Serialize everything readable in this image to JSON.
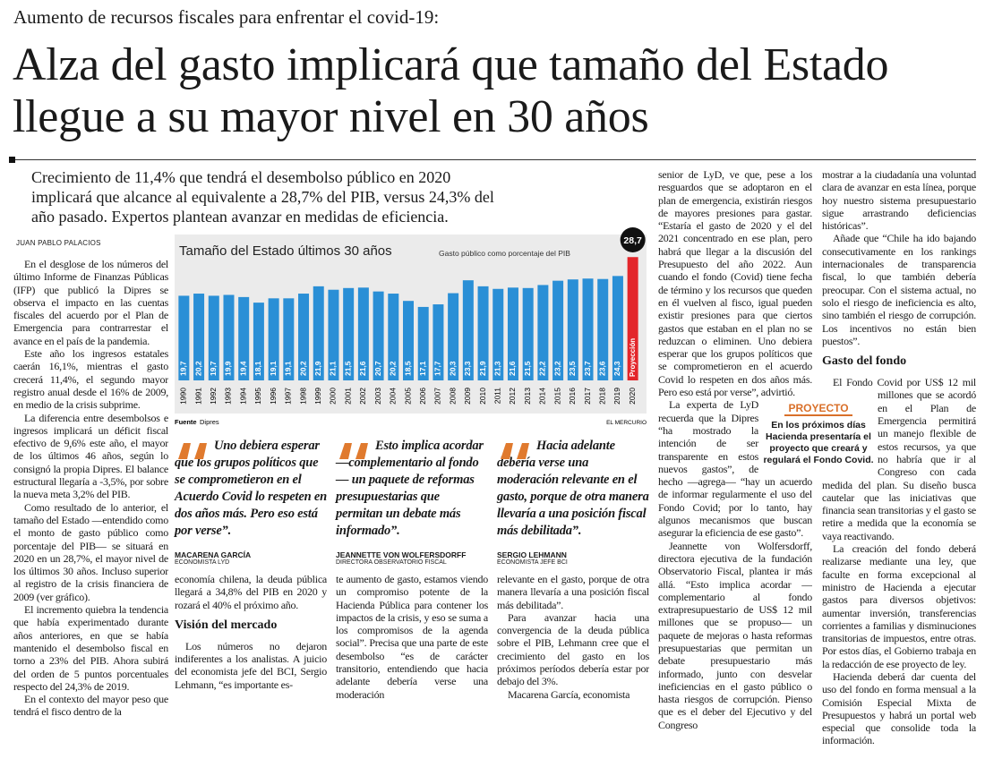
{
  "header": {
    "kicker": "Aumento de recursos fiscales para enfrentar el covid-19:",
    "title": "Alza del gasto implicará que tamaño del Estado llegue a su mayor nivel en 30 años"
  },
  "lead": "Crecimiento de 11,4% que tendrá el desembolso público en 2020 implicará que alcance al equivalente a 28,7% del PIB, versus 24,3% del año pasado. Expertos plantean avanzar en medidas de eficiencia.",
  "byline": "JUAN PABLO PALACIOS",
  "chart_data": {
    "type": "bar",
    "title": "Tamaño del Estado últimos 30 años",
    "subtitle": "Gasto público como porcentaje del PIB",
    "categories": [
      "1990",
      "1991",
      "1992",
      "1993",
      "1994",
      "1995",
      "1996",
      "1997",
      "1998",
      "1999",
      "2000",
      "2001",
      "2002",
      "2003",
      "2004",
      "2005",
      "2006",
      "2007",
      "2008",
      "2009",
      "2010",
      "2011",
      "2012",
      "2013",
      "2014",
      "2015",
      "2016",
      "2017",
      "2018",
      "2019",
      "2020"
    ],
    "values": [
      19.7,
      20.2,
      19.7,
      19.9,
      19.4,
      18.1,
      19.1,
      19.1,
      20.2,
      21.9,
      21.1,
      21.5,
      21.6,
      20.7,
      20.2,
      18.5,
      17.1,
      17.7,
      20.3,
      23.3,
      21.9,
      21.3,
      21.6,
      21.5,
      22.2,
      23.2,
      23.5,
      23.7,
      23.6,
      24.3,
      28.7
    ],
    "value_labels": [
      "19,7",
      "20,2",
      "19,7",
      "19,9",
      "19,4",
      "18,1",
      "19,1",
      "19,1",
      "20,2",
      "21,9",
      "21,1",
      "21,5",
      "21,6",
      "20,7",
      "20,2",
      "18,5",
      "17,1",
      "17,7",
      "20,3",
      "23,3",
      "21,9",
      "21,3",
      "21,6",
      "21,5",
      "22,2",
      "23,2",
      "23,5",
      "23,7",
      "23,6",
      "24,3",
      "28,7"
    ],
    "colors": [
      "#2a8fd6",
      "#2a8fd6",
      "#2a8fd6",
      "#2a8fd6",
      "#2a8fd6",
      "#2a8fd6",
      "#2a8fd6",
      "#2a8fd6",
      "#2a8fd6",
      "#2a8fd6",
      "#2a8fd6",
      "#2a8fd6",
      "#2a8fd6",
      "#2a8fd6",
      "#2a8fd6",
      "#2a8fd6",
      "#2a8fd6",
      "#2a8fd6",
      "#2a8fd6",
      "#2a8fd6",
      "#2a8fd6",
      "#2a8fd6",
      "#2a8fd6",
      "#2a8fd6",
      "#2a8fd6",
      "#2a8fd6",
      "#2a8fd6",
      "#2a8fd6",
      "#2a8fd6",
      "#2a8fd6",
      "#e3262b"
    ],
    "annotation": "Proyección",
    "source_label": "Fuente",
    "source": "Dipres",
    "credit": "EL MERCURIO"
  },
  "quotes": [
    {
      "text": "Uno debiera esperar que los grupos políticos que se comprometieron en el Acuerdo Covid lo respeten en dos años más. Pero eso está por verse”.",
      "name": "MACARENA GARCÍA",
      "role": "ECONOMISTA LYD"
    },
    {
      "text": "Esto implica acordar —complementario al fondo— un paquete de reformas presupuestarias que permitan un debate más informado”.",
      "name": "JEANNETTE VON WOLFERSDORFF",
      "role": "DIRECTORA OBSERVATORIO FISCAL"
    },
    {
      "text": "Hacia adelante debería verse una moderación relevante en el gasto, porque de otra manera llevaría a una posición fiscal más debilitada”.",
      "name": "SERGIO LEHMANN",
      "role": "ECONOMISTA JEFE BCI"
    }
  ],
  "box": {
    "label": "PROYECTO",
    "text": "En los próximos días Hacienda presentaría el proyecto que creará y regulará el Fondo Covid."
  },
  "body": {
    "headings": [
      "Visión del mercado",
      "Gasto del fondo"
    ],
    "p": [
      "En el desglose de los números del último Informe de Finanzas Públicas (IFP) que publicó la Dipres se observa el impacto en las cuentas fiscales del acuerdo por el Plan de Emergencia para contrarrestar el avance en el país de la pandemia.",
      "Este año los ingresos estatales caerán 16,1%, mientras el gasto crecerá 11,4%, el segundo mayor registro anual desde el 16% de 2009, en medio de la crisis subprime.",
      "La diferencia entre desembolsos e ingresos implicará un déficit fiscal efectivo de 9,6% este año, el mayor de los últimos 46 años, según lo consignó la propia Dipres. El balance estructural llegaría a -3,5%, por sobre la nueva meta 3,2% del PIB.",
      "Como resultado de lo anterior, el tamaño del Estado —entendido como el monto de gasto público como porcentaje del PIB— se situará en 2020 en un 28,7%, el mayor nivel de los últimos 30 años. Incluso superior al registro de la crisis financiera de 2009 (ver gráfico).",
      "El incremento quiebra la tendencia que había experimentado durante años anteriores, en que se había mantenido el desembolso fiscal en torno a 23% del PIB. Ahora subirá del orden de 5 puntos porcentuales respecto del 24,3% de 2019.",
      "En el contexto del mayor peso que tendrá el fisco dentro de la",
      "economía chilena, la deuda pública llegará a 34,8% del PIB en 2020 y rozará el 40% el próximo año.",
      "Los números no dejaron indiferentes a los analistas. A juicio del economista jefe del BCI, Sergio Lehmann, “es importante es-",
      "te aumento de gasto, estamos viendo un compromiso potente de la Hacienda Pública para contener los impactos de la crisis, y eso se suma a los compromisos de la agenda social”. Precisa que una parte de este desembolso “es de carácter transitorio, entendiendo que hacia adelante debería verse una moderación",
      "relevante en el gasto, porque de otra manera llevaría a una posición fiscal más debilitada”.",
      "Para avanzar hacia una convergencia de la deuda pública sobre el PIB, Lehmann cree que el crecimiento del gasto en los próximos períodos debería estar por debajo del 3%.",
      "Macarena García, economista",
      "senior de LyD, ve que, pese a los resguardos que se adoptaron en el plan de emergencia, existirán riesgos de mayores presiones para gastar. “Estaría el gasto de 2020 y el del 2021 concentrado en ese plan, pero habrá que llegar a la discusión del Presupuesto del año 2022. Aun cuando el fondo (Covid) tiene fecha de término y los recursos que queden en él vuelven al fisco, igual pueden existir presiones para que ciertos gastos que estaban en el plan no se reduzcan o eliminen. Uno debiera esperar que los grupos políticos que se comprometieron en el acuerdo Covid lo respeten en dos años más. Pero eso está por verse”, advirtió.",
      "La experta de LyD recuerda que la Dipres “ha mostrado la intención de ser transparente en estos nuevos gastos”, de hecho —agrega— “hay un acuerdo de informar regularmente el uso del Fondo Covid; por lo tanto, hay algunos mecanismos que buscan asegurar la eficiencia de ese gasto”.",
      "Jeannette von Wolfersdorff, directora ejecutiva de la fundación Observatorio Fiscal, plantea ir más allá. “Esto implica acordar —complementario al fondo extrapresupuestario de US$ 12 mil millones que se propuso— un paquete de mejoras o hasta reformas presupuestarias que permitan un debate presupuestario más informado, junto con desvelar ineficiencias en el gasto público o hasta riesgos de corrupción. Pienso que es el deber del Ejecutivo y del Congreso",
      "mostrar a la ciudadanía una voluntad clara de avanzar en esta línea, porque hoy nuestro sistema presupuestario sigue arrastrando deficiencias históricas”.",
      "Añade que “Chile ha ido bajando consecutivamente en los rankings internacionales de transparencia fiscal, lo que también debería preocupar. Con el sistema actual, no solo el riesgo de ineficiencia es alto, sino también el riesgo de corrupción. Los incentivos no están bien puestos”.",
      "El Fondo Covid por US$ 12 mil millones que se acordó en el Plan de Emergencia permitirá un manejo flexible de estos recursos, ya que no habría que ir al Congreso con cada medida del plan. Su diseño busca cautelar que las iniciativas que financia sean transitorias y el gasto se retire a medida que la economía se vaya reactivando.",
      "La creación del fondo deberá realizarse mediante una ley, que faculte en forma excepcional al ministro de Hacienda a ejecutar gastos para diversos objetivos: aumentar inversión, transferencias corrientes a familias y disminuciones transitorias de impuestos, entre otras. Por estos días, el Gobierno trabaja en la redacción de ese proyecto de ley.",
      "Hacienda deberá dar cuenta del uso del fondo en forma mensual a la Comisión Especial Mixta de Presupuestos y habrá un portal web especial que consolide toda la información."
    ]
  }
}
